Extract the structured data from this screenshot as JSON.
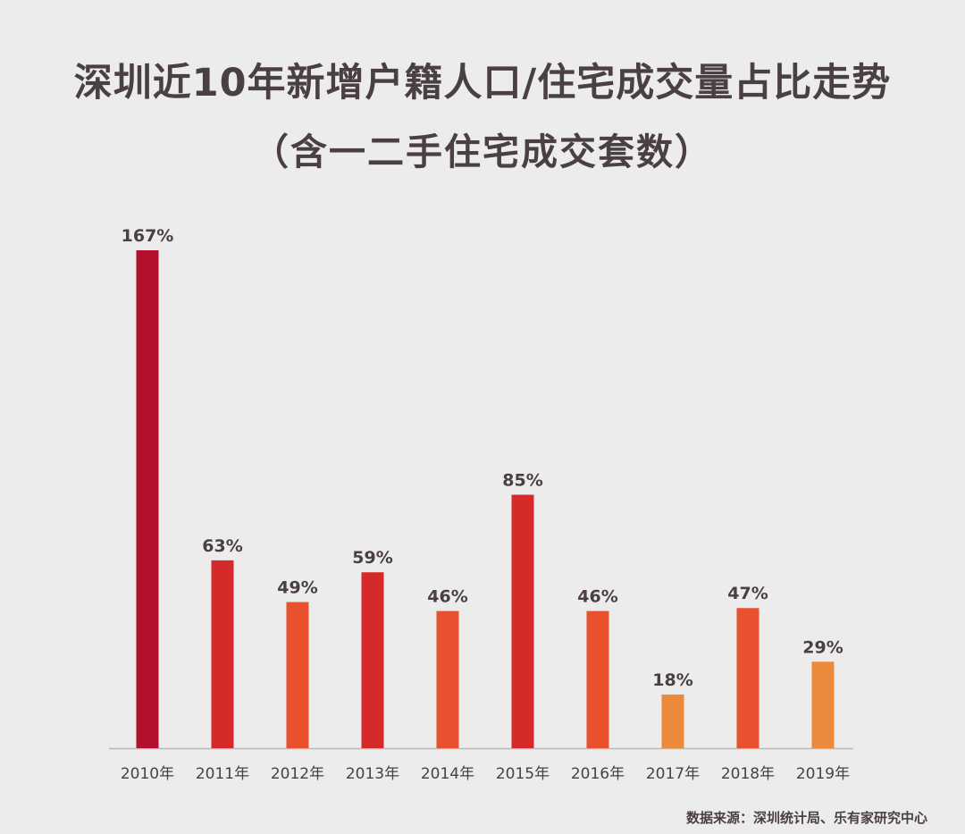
{
  "title": "深圳近10年新增户籍人口/住宅成交量占比走势",
  "subtitle": "（含一二手住宅成交套数）",
  "source": "数据来源：深圳统计局、乐有家研究中心",
  "colors": {
    "background": "#ececec",
    "text": "#4a3f42",
    "axis": "#b8b8b8",
    "bar_colors": [
      "#b3102e",
      "#d62a2a",
      "#e8502e",
      "#d62a2a",
      "#e8502e",
      "#d62a2a",
      "#e8502e",
      "#ec8a3c",
      "#e8502e",
      "#ec8a3c"
    ]
  },
  "chart_data": {
    "type": "bar",
    "categories": [
      "2010年",
      "2011年",
      "2012年",
      "2013年",
      "2014年",
      "2015年",
      "2016年",
      "2017年",
      "2018年",
      "2019年"
    ],
    "values": [
      167,
      63,
      49,
      59,
      46,
      85,
      46,
      18,
      47,
      29
    ],
    "data_labels": [
      "167%",
      "63%",
      "49%",
      "59%",
      "46%",
      "85%",
      "46%",
      "18%",
      "47%",
      "29%"
    ],
    "title": "深圳近10年新增户籍人口/住宅成交量占比走势",
    "subtitle": "（含一二手住宅成交套数）",
    "ylim": [
      0,
      167
    ],
    "grid": false,
    "legend": "none"
  }
}
